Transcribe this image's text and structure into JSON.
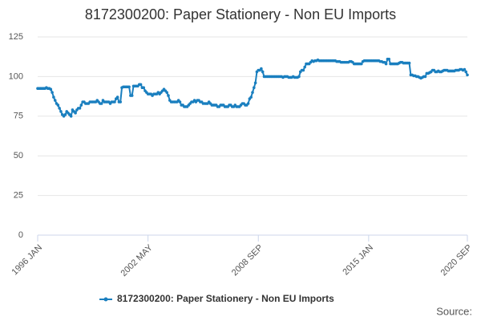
{
  "chart_data": {
    "type": "line",
    "title": "8172300200: Paper Stationery - Non EU Imports",
    "source": "Source:",
    "ylim": [
      0,
      125
    ],
    "yticks": [
      0,
      25,
      50,
      75,
      100,
      125
    ],
    "grid": true,
    "legend": "bottom",
    "categories": [
      "1996 JAN",
      null,
      null,
      null,
      null,
      null,
      null,
      null,
      null,
      null,
      null,
      null,
      null,
      null,
      null,
      null,
      null,
      null,
      null,
      null,
      null,
      null,
      null,
      null,
      null,
      null,
      null,
      null,
      null,
      null,
      null,
      null,
      null,
      null,
      null,
      null,
      null,
      null,
      null,
      null,
      null,
      null,
      null,
      null,
      null,
      null,
      null,
      null,
      null,
      null,
      null,
      null,
      null,
      null,
      null,
      null,
      null,
      null,
      null,
      null,
      null,
      null,
      null,
      null,
      null,
      null,
      null,
      null,
      null,
      null,
      null,
      null,
      null,
      null,
      null,
      null,
      "2002 MAY",
      null,
      null,
      null,
      null,
      null,
      null,
      null,
      null,
      null,
      null,
      null,
      null,
      null,
      null,
      null,
      null,
      null,
      null,
      null,
      null,
      null,
      null,
      null,
      null,
      null,
      null,
      null,
      null,
      null,
      null,
      null,
      null,
      null,
      null,
      null,
      null,
      null,
      null,
      null,
      null,
      null,
      null,
      null,
      null,
      null,
      null,
      null,
      null,
      null,
      null,
      null,
      null,
      null,
      null,
      null,
      null,
      null,
      null,
      null,
      null,
      null,
      null,
      null,
      null,
      null,
      null,
      null,
      null,
      null,
      null,
      null,
      null,
      null,
      null,
      null,
      "2008 SEP",
      null,
      null,
      null,
      null,
      null,
      null,
      null,
      null,
      null,
      null,
      null,
      null,
      null,
      null,
      null,
      null,
      null,
      null,
      null,
      null,
      null,
      null,
      null,
      null,
      null,
      null,
      null,
      null,
      null,
      null,
      null,
      null,
      null,
      null,
      null,
      null,
      null,
      null,
      null,
      null,
      null,
      null,
      null,
      null,
      null,
      null,
      null,
      null,
      null,
      null,
      null,
      null,
      null,
      null,
      null,
      null,
      null,
      null,
      null,
      null,
      null,
      null,
      null,
      null,
      null,
      null,
      null,
      null,
      null,
      null,
      null,
      null,
      null,
      null,
      null,
      "2015 JAN",
      null,
      null,
      null,
      null,
      null,
      null,
      null,
      null,
      null,
      null,
      null,
      null,
      null,
      null,
      null,
      null,
      null,
      null,
      null,
      null,
      null,
      null,
      null,
      null,
      null,
      null,
      null,
      null,
      null,
      null,
      null,
      null,
      null,
      null,
      null,
      null,
      null,
      null,
      null,
      null,
      null,
      null,
      null,
      null,
      null,
      null,
      null,
      null,
      null,
      null,
      null,
      null,
      null,
      null,
      null,
      null,
      null,
      null,
      null,
      null,
      null,
      null,
      null,
      null,
      null,
      null,
      null,
      "2020 SEP"
    ],
    "series": [
      {
        "name": "8172300200: Paper Stationery - Non EU Imports",
        "color": "#1a7fbf",
        "values": [
          92.5,
          92.5,
          92.5,
          92.5,
          92.5,
          92.5,
          93,
          92.5,
          92.5,
          92,
          90,
          87,
          85,
          83,
          82,
          80,
          78,
          76,
          75,
          76,
          78,
          77,
          76,
          75,
          79,
          78,
          77,
          79,
          80,
          80,
          82,
          84,
          84,
          83,
          83,
          83,
          84,
          84,
          84,
          84,
          84,
          85,
          84,
          83,
          83,
          85,
          84,
          84,
          84,
          84,
          83,
          84,
          84,
          84,
          86,
          87,
          84,
          84,
          93,
          93.5,
          93.5,
          93.5,
          93.5,
          93.5,
          88,
          88,
          94,
          94,
          94,
          94,
          95,
          95,
          93,
          93,
          91,
          90,
          89,
          89,
          89,
          88,
          89,
          89,
          89,
          90,
          89,
          90,
          91,
          92,
          91,
          90,
          88,
          85,
          84,
          84,
          84,
          84,
          84,
          85,
          84,
          82,
          82,
          81,
          81,
          81,
          82,
          83,
          84,
          84,
          85,
          84,
          85,
          85,
          84,
          84,
          83,
          83,
          83,
          83,
          84,
          83,
          82,
          82,
          82,
          82,
          81,
          81,
          82,
          82,
          82,
          81,
          81,
          81,
          82,
          82,
          81,
          81,
          82,
          81,
          81,
          81,
          82,
          83,
          83,
          82,
          82,
          83,
          86,
          87,
          90,
          93,
          96,
          103,
          104,
          104,
          105,
          103,
          100,
          100,
          100,
          100,
          100,
          100,
          100,
          100,
          100,
          100,
          100,
          100,
          100,
          99.5,
          100,
          100,
          100,
          99.5,
          99.5,
          99.5,
          100,
          99.5,
          99.5,
          99.5,
          100,
          103,
          104,
          104,
          106,
          108,
          108,
          108,
          109,
          110,
          109.5,
          110,
          110,
          110.5,
          110,
          110,
          110,
          110,
          110,
          110,
          110,
          110,
          110,
          110,
          110,
          110,
          109.5,
          109.5,
          109.5,
          109,
          109,
          109,
          109,
          109,
          109,
          109.5,
          109.5,
          109,
          108,
          108,
          108,
          108,
          108,
          108,
          109.5,
          110,
          110,
          110,
          110,
          110,
          110,
          110,
          110,
          110,
          110,
          110,
          109.5,
          109.5,
          109,
          109,
          108,
          111,
          111,
          108,
          108,
          108,
          108,
          108,
          108,
          108.5,
          109,
          109,
          108.5,
          108.5,
          108.5,
          108.5,
          108.5,
          101,
          101,
          100.5,
          100.5,
          100,
          100,
          99.5,
          99,
          99.5,
          100,
          100,
          102,
          102,
          102.5,
          103,
          104,
          104,
          103,
          103,
          103.5,
          103,
          103,
          103.5,
          104,
          104,
          104,
          103.5,
          103.5,
          103.5,
          103.5,
          103.5,
          104,
          104,
          104,
          104.5,
          104.5,
          104,
          104.5,
          103,
          101
        ]
      }
    ]
  }
}
